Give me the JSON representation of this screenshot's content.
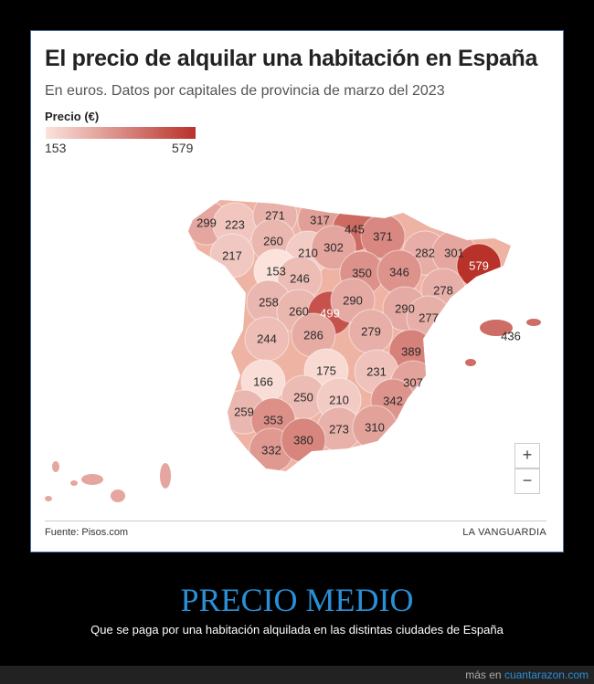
{
  "header": {
    "title": "El precio de alquilar una habitación en España",
    "subtitle": "En euros. Datos por capitales de provincia de marzo del 2023"
  },
  "legend": {
    "title": "Precio (€)",
    "min": "153",
    "max": "579",
    "min_color": "#fbe3dc",
    "max_color": "#b8322a"
  },
  "map": {
    "values": [
      "299",
      "223",
      "271",
      "317",
      "445",
      "371",
      "260",
      "217",
      "210",
      "302",
      "282",
      "301",
      "579",
      "153",
      "246",
      "350",
      "346",
      "278",
      "258",
      "260",
      "499",
      "290",
      "290",
      "277",
      "436",
      "244",
      "286",
      "279",
      "389",
      "166",
      "175",
      "231",
      "307",
      "259",
      "250",
      "210",
      "342",
      "353",
      "273",
      "310",
      "332",
      "380"
    ],
    "zoom_in": "+",
    "zoom_out": "−"
  },
  "footer": {
    "source": "Fuente: Pisos.com",
    "brand": "LA VANGUARDIA"
  },
  "caption": {
    "title": "PRECIO MEDIO",
    "subtitle": "Que se paga por una habitación alquilada en las distintas ciudades de España"
  },
  "bottom": {
    "prefix": "más en",
    "link": "cuantarazon.com"
  }
}
